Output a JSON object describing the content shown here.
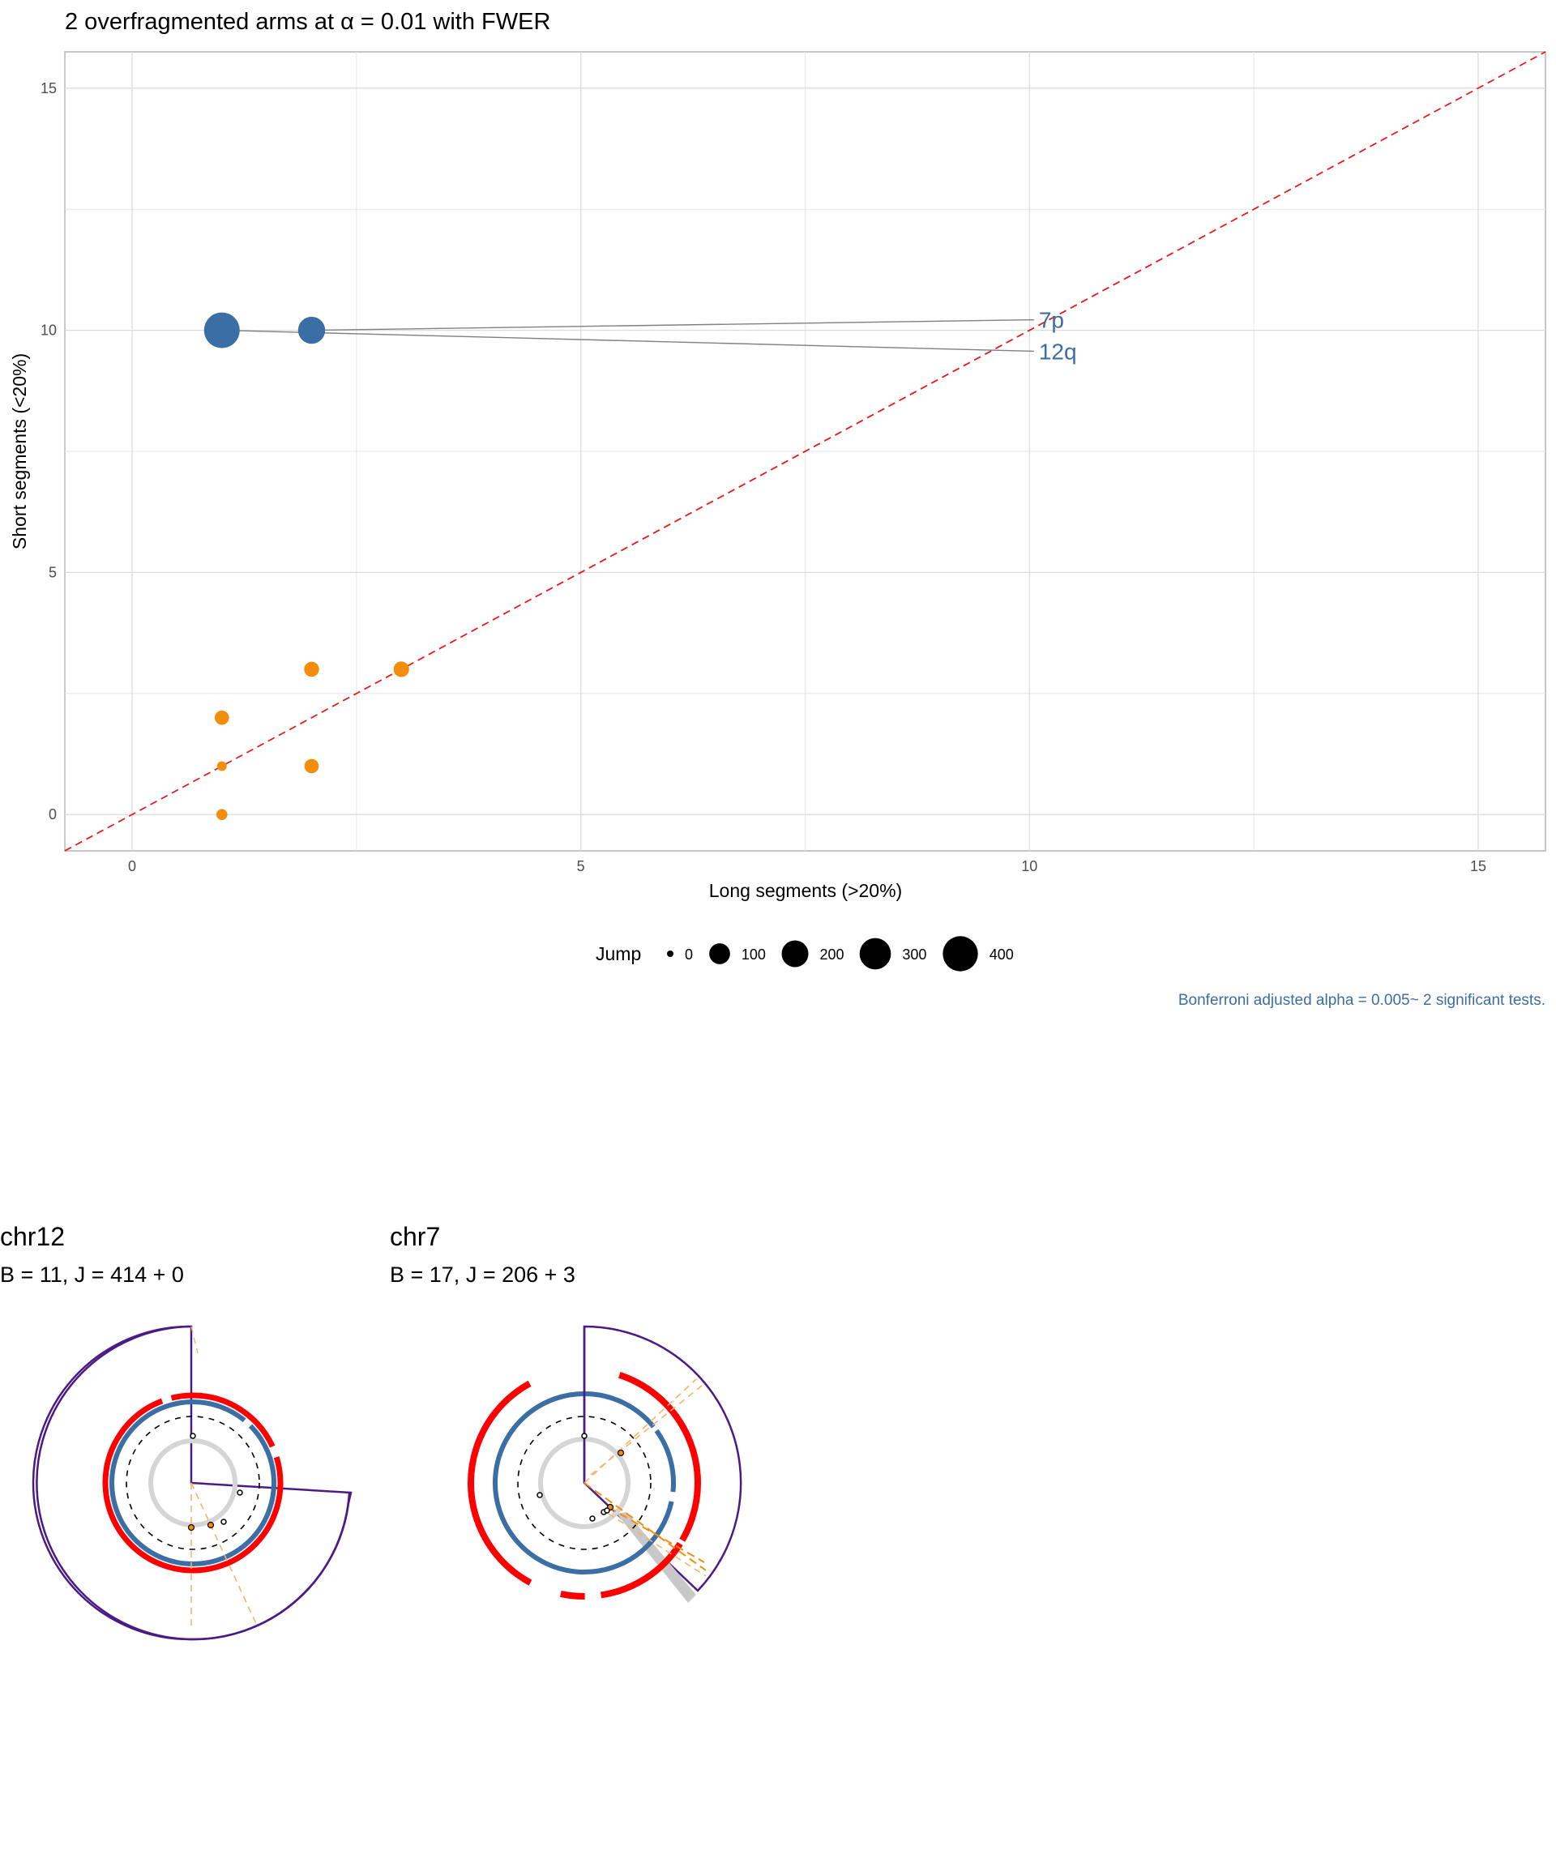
{
  "title": "2 overfragmented arms at α = 0.01 with FWER",
  "caption": "Bonferroni adjusted alpha = 0.005~ 2 significant tests.",
  "colors": {
    "significant": "#3a6ea5",
    "nonsignificant": "#f28e0c",
    "diagonal": "#e8191b",
    "grid": "#e6e6e6",
    "panel_border": "#b3b3b3",
    "leader": "#808080",
    "outer_ring": "#4b1a85",
    "red_ring": "#ff0000",
    "blue_ring": "#3a6ea5",
    "grey_ring": "#d5d5d5"
  },
  "chart_data": {
    "type": "scatter",
    "title": "2 overfragmented arms at α = 0.01 with FWER",
    "xlabel": "Long segments (>20%)",
    "ylabel": "Short segments (<20%)",
    "xlim": [
      -0.75,
      15.75
    ],
    "ylim": [
      -0.75,
      15.75
    ],
    "xticks": [
      0,
      5,
      10,
      15
    ],
    "yticks": [
      0,
      5,
      10,
      15
    ],
    "grid": true,
    "reference_line": "y = x (dashed)",
    "size_legend": {
      "title": "Jump",
      "position": "bottom",
      "values": [
        0,
        100,
        200,
        300,
        400
      ],
      "labels": [
        "0",
        "100",
        "200",
        "300",
        "400"
      ]
    },
    "points": [
      {
        "x": 1,
        "y": 10,
        "jump": 414,
        "significant": true,
        "label": "12q"
      },
      {
        "x": 2,
        "y": 10,
        "jump": 206,
        "significant": true,
        "label": "7p"
      },
      {
        "x": 1,
        "y": 2,
        "jump": 30,
        "significant": false
      },
      {
        "x": 1,
        "y": 1,
        "jump": 5,
        "significant": false
      },
      {
        "x": 1,
        "y": 0,
        "jump": 10,
        "significant": false
      },
      {
        "x": 2,
        "y": 3,
        "jump": 35,
        "significant": false
      },
      {
        "x": 2,
        "y": 1,
        "jump": 30,
        "significant": false
      },
      {
        "x": 3,
        "y": 3,
        "jump": 40,
        "significant": false
      }
    ],
    "annotations": [
      {
        "text": "7p",
        "x": 10.05,
        "y": 10.15
      },
      {
        "text": "12q",
        "x": 10.05,
        "y": 9.5
      }
    ]
  },
  "panels": [
    {
      "title": "chr12",
      "subtitle": "B = 11, J = 414 + 0"
    },
    {
      "title": "chr7",
      "subtitle": "B = 17, J = 206 + 3"
    }
  ]
}
